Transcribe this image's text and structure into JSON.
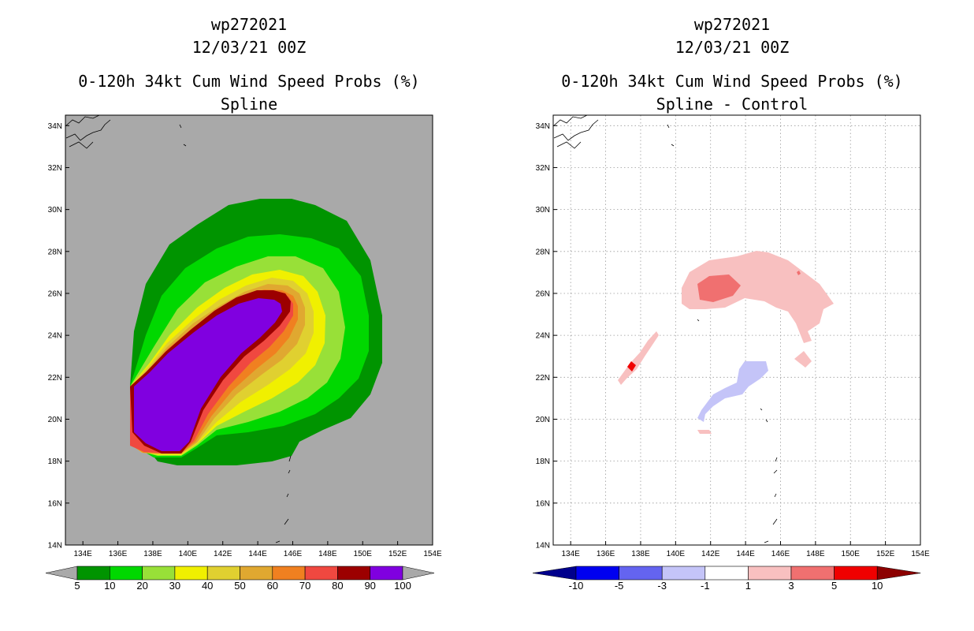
{
  "chart_data": [
    {
      "type": "heatmap",
      "storm_id": "wp272021",
      "datetime": "12/03/21 00Z",
      "title": "0-120h 34kt Cum Wind Speed Probs (%)",
      "subtitle": "Spline",
      "lon_range": [
        133,
        154
      ],
      "lat_range": [
        14,
        34.5
      ],
      "x_ticks": [
        "134E",
        "136E",
        "138E",
        "140E",
        "142E",
        "144E",
        "146E",
        "148E",
        "150E",
        "152E",
        "154E"
      ],
      "y_ticks": [
        "14N",
        "16N",
        "18N",
        "20N",
        "22N",
        "24N",
        "26N",
        "28N",
        "30N",
        "32N",
        "34N"
      ],
      "background_color": "#a9a9a9",
      "colorbar": {
        "labels": [
          "5",
          "10",
          "20",
          "30",
          "40",
          "50",
          "60",
          "70",
          "80",
          "90",
          "100"
        ],
        "colors": [
          "#009400",
          "#00d800",
          "#98e038",
          "#f0f000",
          "#e0d030",
          "#e0a830",
          "#f08020",
          "#f04840",
          "#9c0000",
          "#8000e0"
        ]
      },
      "probability_swath": [
        {
          "level": 5,
          "color": "#009400"
        },
        {
          "level": 10,
          "color": "#00d800"
        },
        {
          "level": 20,
          "color": "#98e038"
        },
        {
          "level": 30,
          "color": "#f0f000"
        },
        {
          "level": 40,
          "color": "#e0d030"
        },
        {
          "level": 50,
          "color": "#e0a830"
        },
        {
          "level": 60,
          "color": "#f08020"
        },
        {
          "level": 70,
          "color": "#f04840"
        },
        {
          "level": 80,
          "color": "#9c0000"
        },
        {
          "level": 90,
          "color": "#8000e0"
        }
      ]
    },
    {
      "type": "heatmap",
      "storm_id": "wp272021",
      "datetime": "12/03/21 00Z",
      "title": "0-120h 34kt Cum Wind Speed Probs (%)",
      "subtitle": "Spline - Control",
      "lon_range": [
        133,
        154
      ],
      "lat_range": [
        14,
        34.5
      ],
      "x_ticks": [
        "134E",
        "136E",
        "138E",
        "140E",
        "142E",
        "144E",
        "146E",
        "148E",
        "150E",
        "152E",
        "154E"
      ],
      "y_ticks": [
        "14N",
        "16N",
        "18N",
        "20N",
        "22N",
        "24N",
        "26N",
        "28N",
        "30N",
        "32N",
        "34N"
      ],
      "grid": true,
      "colorbar": {
        "labels": [
          "-10",
          "-5",
          "-3",
          "-1",
          "1",
          "3",
          "5",
          "10"
        ],
        "colors": [
          "#00008c",
          "#0000f0",
          "#6464f0",
          "#c4c4f8",
          "#ffffff",
          "#f8c0c0",
          "#f07070",
          "#f00000",
          "#8c0000"
        ]
      },
      "difference_areas": [
        {
          "name": "positive-north",
          "range": "1 to 3"
        },
        {
          "name": "positive-core",
          "range": "3 to 5"
        },
        {
          "name": "positive-southwest",
          "range": "1 to 3"
        },
        {
          "name": "positive-southwest-core",
          "range": "5 to 10"
        },
        {
          "name": "negative-south",
          "range": "-3 to -1"
        }
      ]
    }
  ]
}
